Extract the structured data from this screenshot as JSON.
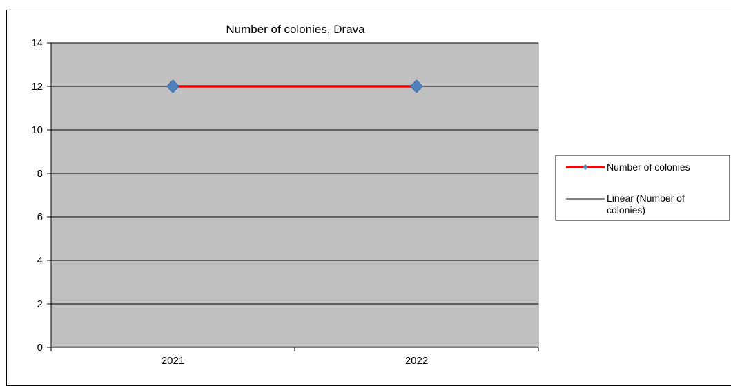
{
  "chart_data": {
    "type": "line",
    "title": "Number  of colonies, Drava",
    "xlabel": "",
    "ylabel": "",
    "categories": [
      "2021",
      "2022"
    ],
    "ylim": [
      0,
      14
    ],
    "yticks": [
      0,
      2,
      4,
      6,
      8,
      10,
      12,
      14
    ],
    "grid": true,
    "legend_position": "right",
    "plot_background": "#c0c0c0",
    "series": [
      {
        "name": "Number of colonies",
        "values": [
          12,
          12
        ],
        "color": "#ff0000",
        "marker": "diamond",
        "marker_color": "#4f81bd"
      },
      {
        "name": "Linear (Number of colonies)",
        "values": [
          12,
          12
        ],
        "color": "#000000",
        "trendline": true
      }
    ],
    "legend": [
      {
        "label": "Number of colonies"
      },
      {
        "label_line1": "Linear (Number of",
        "label_line2": "colonies)"
      }
    ]
  }
}
